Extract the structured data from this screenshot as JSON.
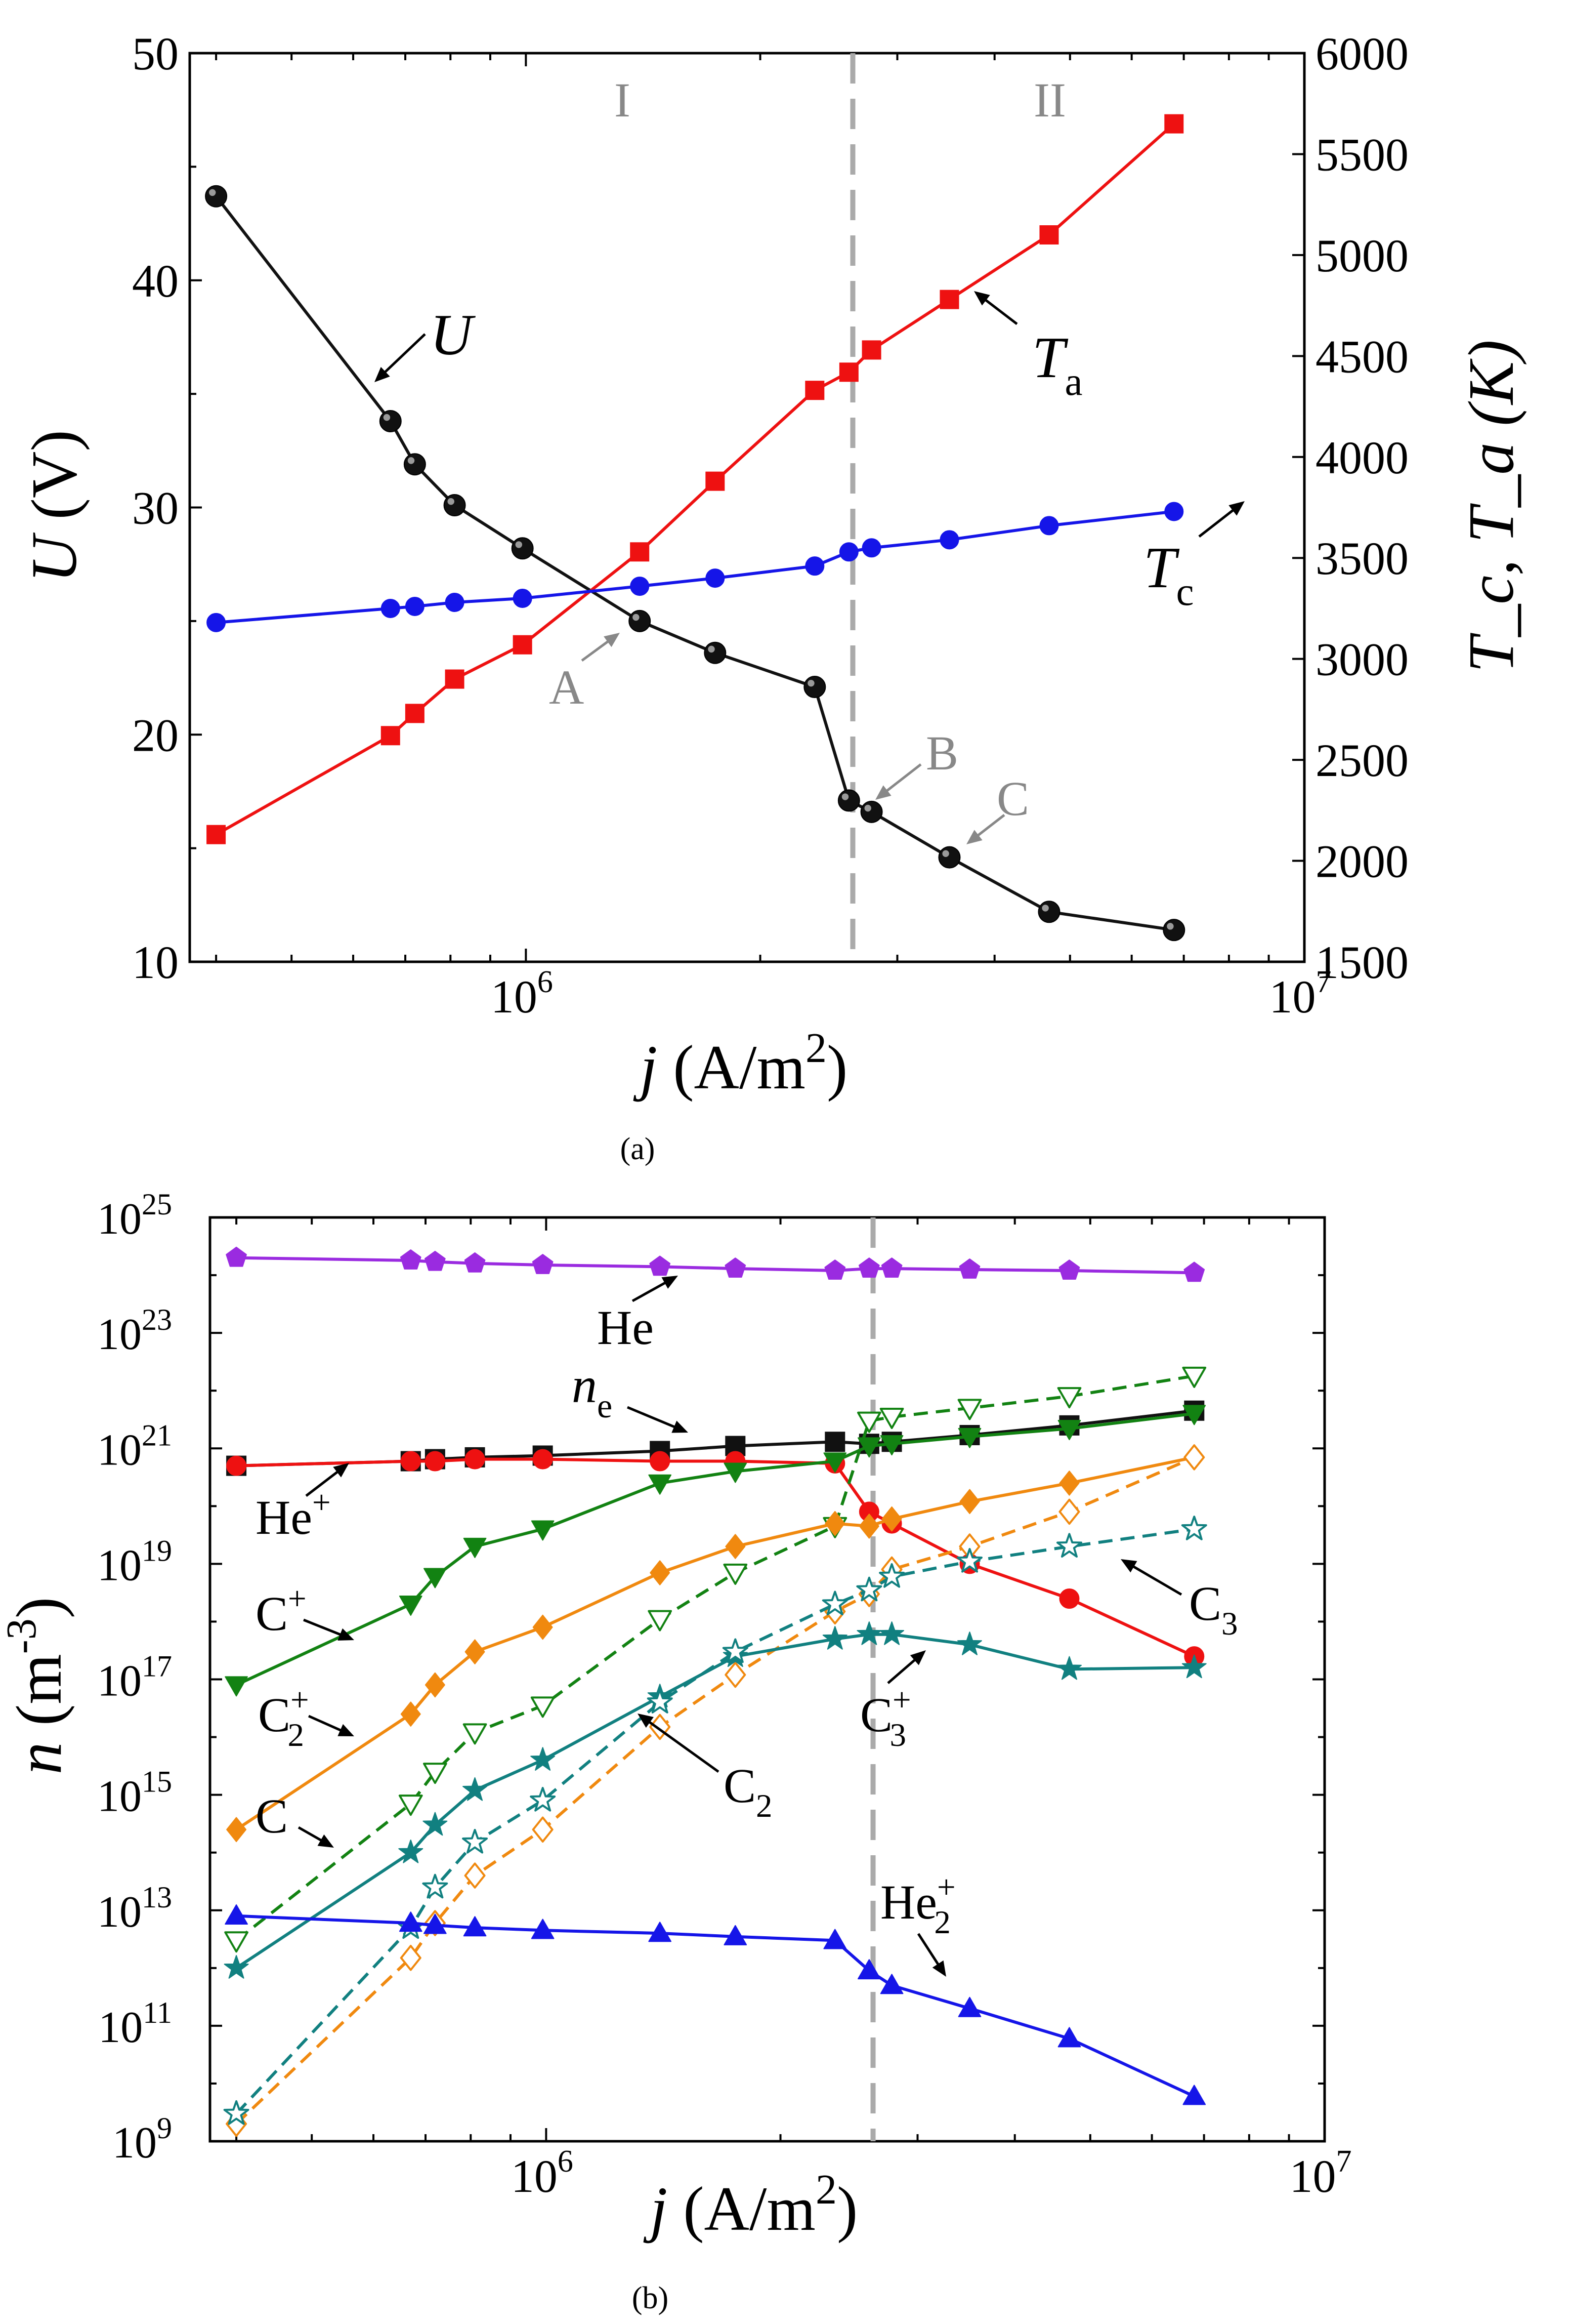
{
  "colors": {
    "black": "#111111",
    "red": "#ee1111",
    "blue": "#1515e8",
    "green": "#128212",
    "orange": "#f0890f",
    "teal": "#118080",
    "purple": "#9a2be0",
    "gray": "#aaaaaa",
    "annot": "#888888"
  },
  "chart_data": [
    {
      "type": "line",
      "panel_label": "(a)",
      "xscale": "log",
      "xlim": [
        370000,
        10000000
      ],
      "ylim_left": [
        10,
        50
      ],
      "ylim_right": [
        1500,
        6000
      ],
      "xlabel": {
        "italic": "j",
        "text": " (A/m",
        "sup": "2",
        "end": ")"
      },
      "ylabel_left": {
        "italic": "U",
        "text": " (V)"
      },
      "ylabel_right": {
        "text": "T_c, T_a (K)"
      },
      "x_ticks": [
        {
          "value": 1000000,
          "base": "10",
          "exp": "6"
        },
        {
          "value": 10000000,
          "base": "10",
          "exp": "7"
        }
      ],
      "y_ticks_left": [
        "10",
        "20",
        "30",
        "40",
        "50"
      ],
      "y_ticks_right": [
        "1500",
        "2000",
        "2500",
        "3000",
        "3500",
        "4000",
        "4500",
        "5000",
        "5500",
        "6000"
      ],
      "region_divider_x": 2630000,
      "regions": [
        "I",
        "II"
      ],
      "series": [
        {
          "name": "U",
          "axis": "left",
          "color": "black",
          "marker": "sphere",
          "x": [
            400000,
            670000,
            720000,
            810000,
            990000,
            1400000,
            1750000,
            2350000,
            2600000,
            2780000,
            3500000,
            4700000,
            6800000
          ],
          "y": [
            43.7,
            33.8,
            31.9,
            30.1,
            28.2,
            25.0,
            23.6,
            22.1,
            17.1,
            16.6,
            14.6,
            12.2,
            11.4
          ]
        },
        {
          "name": "T_a",
          "axis": "right",
          "color": "red",
          "marker": "square",
          "x": [
            400000,
            670000,
            720000,
            810000,
            990000,
            1400000,
            1750000,
            2350000,
            2600000,
            2780000,
            3500000,
            4700000,
            6800000
          ],
          "y": [
            2130,
            2620,
            2730,
            2900,
            3070,
            3530,
            3880,
            4330,
            4420,
            4530,
            4780,
            5100,
            5650
          ]
        },
        {
          "name": "T_c",
          "axis": "right",
          "color": "blue",
          "marker": "circle",
          "x": [
            400000,
            670000,
            720000,
            810000,
            990000,
            1400000,
            1750000,
            2350000,
            2600000,
            2780000,
            3500000,
            4700000,
            6800000
          ],
          "y": [
            3180,
            3250,
            3260,
            3280,
            3300,
            3360,
            3400,
            3460,
            3530,
            3550,
            3590,
            3660,
            3730
          ]
        }
      ],
      "annotations": [
        {
          "id": "U",
          "italic": "U"
        },
        {
          "id": "Ta",
          "italic": "T",
          "sub": "a"
        },
        {
          "id": "Tc",
          "italic": "T",
          "sub": "c"
        },
        {
          "id": "A",
          "text": "A"
        },
        {
          "id": "B",
          "text": "B"
        },
        {
          "id": "C",
          "text": "C"
        }
      ]
    },
    {
      "type": "line",
      "panel_label": "(b)",
      "xscale": "log",
      "yscale": "log",
      "xlim": [
        370000,
        10000000
      ],
      "ylim": [
        1000000000,
        1e+25
      ],
      "xlabel": {
        "italic": "j",
        "text": " (A/m",
        "sup": "2",
        "end": ")"
      },
      "ylabel": {
        "italic": "n",
        "text": " (m",
        "sup": "-3",
        "end": ")"
      },
      "x_ticks": [
        {
          "value": 1000000,
          "base": "10",
          "exp": "6"
        },
        {
          "value": 10000000,
          "base": "10",
          "exp": "7"
        }
      ],
      "y_ticks": [
        {
          "exp": 9
        },
        {
          "exp": 11
        },
        {
          "exp": 13
        },
        {
          "exp": 15
        },
        {
          "exp": 17
        },
        {
          "exp": 19
        },
        {
          "exp": 21
        },
        {
          "exp": 23
        },
        {
          "exp": 25
        }
      ],
      "region_divider_x": 2630000,
      "series": [
        {
          "name": "He",
          "color": "purple",
          "marker": "pentagon",
          "dash": false,
          "x": [
            400000,
            670000,
            720000,
            810000,
            990000,
            1400000,
            1750000,
            2350000,
            2600000,
            2780000,
            3500000,
            4700000,
            6800000
          ],
          "y": [
            2e+24,
            1.8e+24,
            1.7e+24,
            1.6e+24,
            1.5e+24,
            1.4e+24,
            1.3e+24,
            1.2e+24,
            1.3e+24,
            1.3e+24,
            1.25e+24,
            1.2e+24,
            1.1e+24
          ]
        },
        {
          "name": "n_e",
          "color": "black",
          "marker": "square",
          "dash": false,
          "x": [
            400000,
            670000,
            720000,
            810000,
            990000,
            1400000,
            1750000,
            2350000,
            2600000,
            2780000,
            3500000,
            4700000,
            6800000
          ],
          "y": [
            5e+20,
            6e+20,
            6.5e+20,
            7e+20,
            7.5e+20,
            9e+20,
            1.1e+21,
            1.3e+21,
            1.2e+21,
            1.3e+21,
            1.7e+21,
            2.5e+21,
            4.5e+21
          ]
        },
        {
          "name": "He+",
          "color": "red",
          "marker": "circle",
          "dash": false,
          "x": [
            400000,
            670000,
            720000,
            810000,
            990000,
            1400000,
            1750000,
            2350000,
            2600000,
            2780000,
            3500000,
            4700000,
            6800000
          ],
          "y": [
            5e+20,
            6e+20,
            6e+20,
            6.5e+20,
            6.5e+20,
            6e+20,
            6e+20,
            5.5e+20,
            8e+19,
            5e+19,
            1e+19,
            2.5e+18,
            2.5e+17
          ]
        },
        {
          "name": "C+",
          "color": "green",
          "marker": "triangle-down",
          "dash": false,
          "x": [
            400000,
            670000,
            720000,
            810000,
            990000,
            1400000,
            1750000,
            2350000,
            2600000,
            2780000,
            3500000,
            4700000,
            6800000
          ],
          "y": [
            8e+16,
            2e+18,
            6e+18,
            2e+19,
            4e+19,
            2.5e+20,
            4e+20,
            6e+20,
            1.1e+21,
            1.2e+21,
            1.6e+21,
            2.2e+21,
            4e+21
          ]
        },
        {
          "name": "C",
          "color": "green",
          "marker": "triangle-down-open",
          "dash": true,
          "x": [
            400000,
            670000,
            720000,
            810000,
            990000,
            1400000,
            1750000,
            2350000,
            2600000,
            2780000,
            3500000,
            4700000,
            6800000
          ],
          "y": [
            3000000000000.0,
            700000000000000.0,
            2500000000000000.0,
            1.2e+16,
            3.5e+16,
            1.1e+18,
            7e+18,
            4.5e+19,
            3e+21,
            3.5e+21,
            5e+21,
            8e+21,
            1.8e+22
          ]
        },
        {
          "name": "C2+",
          "color": "orange",
          "marker": "diamond",
          "dash": false,
          "x": [
            400000,
            670000,
            720000,
            810000,
            990000,
            1400000,
            1750000,
            2350000,
            2600000,
            2780000,
            3500000,
            4700000,
            6800000
          ],
          "y": [
            250000000000000.0,
            2.5e+16,
            8e+16,
            3e+17,
            8e+17,
            7e+18,
            2e+19,
            5e+19,
            4.5e+19,
            6e+19,
            1.2e+20,
            2.5e+20,
            7e+20
          ]
        },
        {
          "name": "C2",
          "color": "orange",
          "marker": "diamond-open",
          "dash": true,
          "x": [
            400000,
            670000,
            720000,
            810000,
            990000,
            1400000,
            1750000,
            2350000,
            2600000,
            2780000,
            3500000,
            4700000,
            6800000
          ],
          "y": [
            2000000000.0,
            1500000000000.0,
            6000000000000.0,
            40000000000000.0,
            250000000000000.0,
            1.5e+16,
            1.2e+17,
            1.5e+18,
            3e+18,
            8e+18,
            2e+19,
            8e+19,
            7e+20
          ]
        },
        {
          "name": "C3+",
          "color": "teal",
          "marker": "star",
          "dash": false,
          "x": [
            400000,
            670000,
            720000,
            810000,
            990000,
            1400000,
            1750000,
            2350000,
            2600000,
            2780000,
            3500000,
            4700000,
            6800000
          ],
          "y": [
            1000000000000.0,
            100000000000000.0,
            300000000000000.0,
            1200000000000000.0,
            4000000000000000.0,
            5e+16,
            2.5e+17,
            5e+17,
            6e+17,
            6e+17,
            4e+17,
            1.5e+17,
            1.6e+17
          ]
        },
        {
          "name": "C3",
          "color": "teal",
          "marker": "star-open",
          "dash": true,
          "x": [
            400000,
            670000,
            720000,
            810000,
            990000,
            1400000,
            1750000,
            2350000,
            2600000,
            2780000,
            3500000,
            4700000,
            6800000
          ],
          "y": [
            3000000000.0,
            5000000000000.0,
            25000000000000.0,
            150000000000000.0,
            800000000000000.0,
            4e+16,
            3e+17,
            2e+18,
            3.5e+18,
            6e+18,
            1.1e+19,
            2e+19,
            4e+19
          ]
        },
        {
          "name": "He2+",
          "color": "blue",
          "marker": "triangle-up",
          "dash": false,
          "x": [
            400000,
            670000,
            720000,
            810000,
            990000,
            1400000,
            1750000,
            2350000,
            2600000,
            2780000,
            3500000,
            4700000,
            6800000
          ],
          "y": [
            8000000000000.0,
            6000000000000.0,
            5500000000000.0,
            5000000000000.0,
            4500000000000.0,
            4000000000000.0,
            3500000000000.0,
            3000000000000.0,
            900000000000.0,
            500000000000.0,
            200000000000.0,
            60000000000.0,
            6000000000.0
          ]
        }
      ],
      "annotations": [
        {
          "id": "He",
          "text": "He"
        },
        {
          "id": "ne",
          "italic": "n",
          "sub": "e"
        },
        {
          "id": "He+",
          "text": "He",
          "sup": "+"
        },
        {
          "id": "C+",
          "text": "C",
          "sup": "+"
        },
        {
          "id": "C2+",
          "text": "C",
          "sub": "2",
          "sup": "+"
        },
        {
          "id": "C",
          "text": "C"
        },
        {
          "id": "C2",
          "text": "C",
          "sub": "2"
        },
        {
          "id": "C3+",
          "text": "C",
          "sub": "3",
          "sup": "+"
        },
        {
          "id": "C3",
          "text": "C",
          "sub": "3"
        },
        {
          "id": "He2+",
          "text": "He",
          "sub": "2",
          "sup": "+"
        }
      ]
    }
  ]
}
